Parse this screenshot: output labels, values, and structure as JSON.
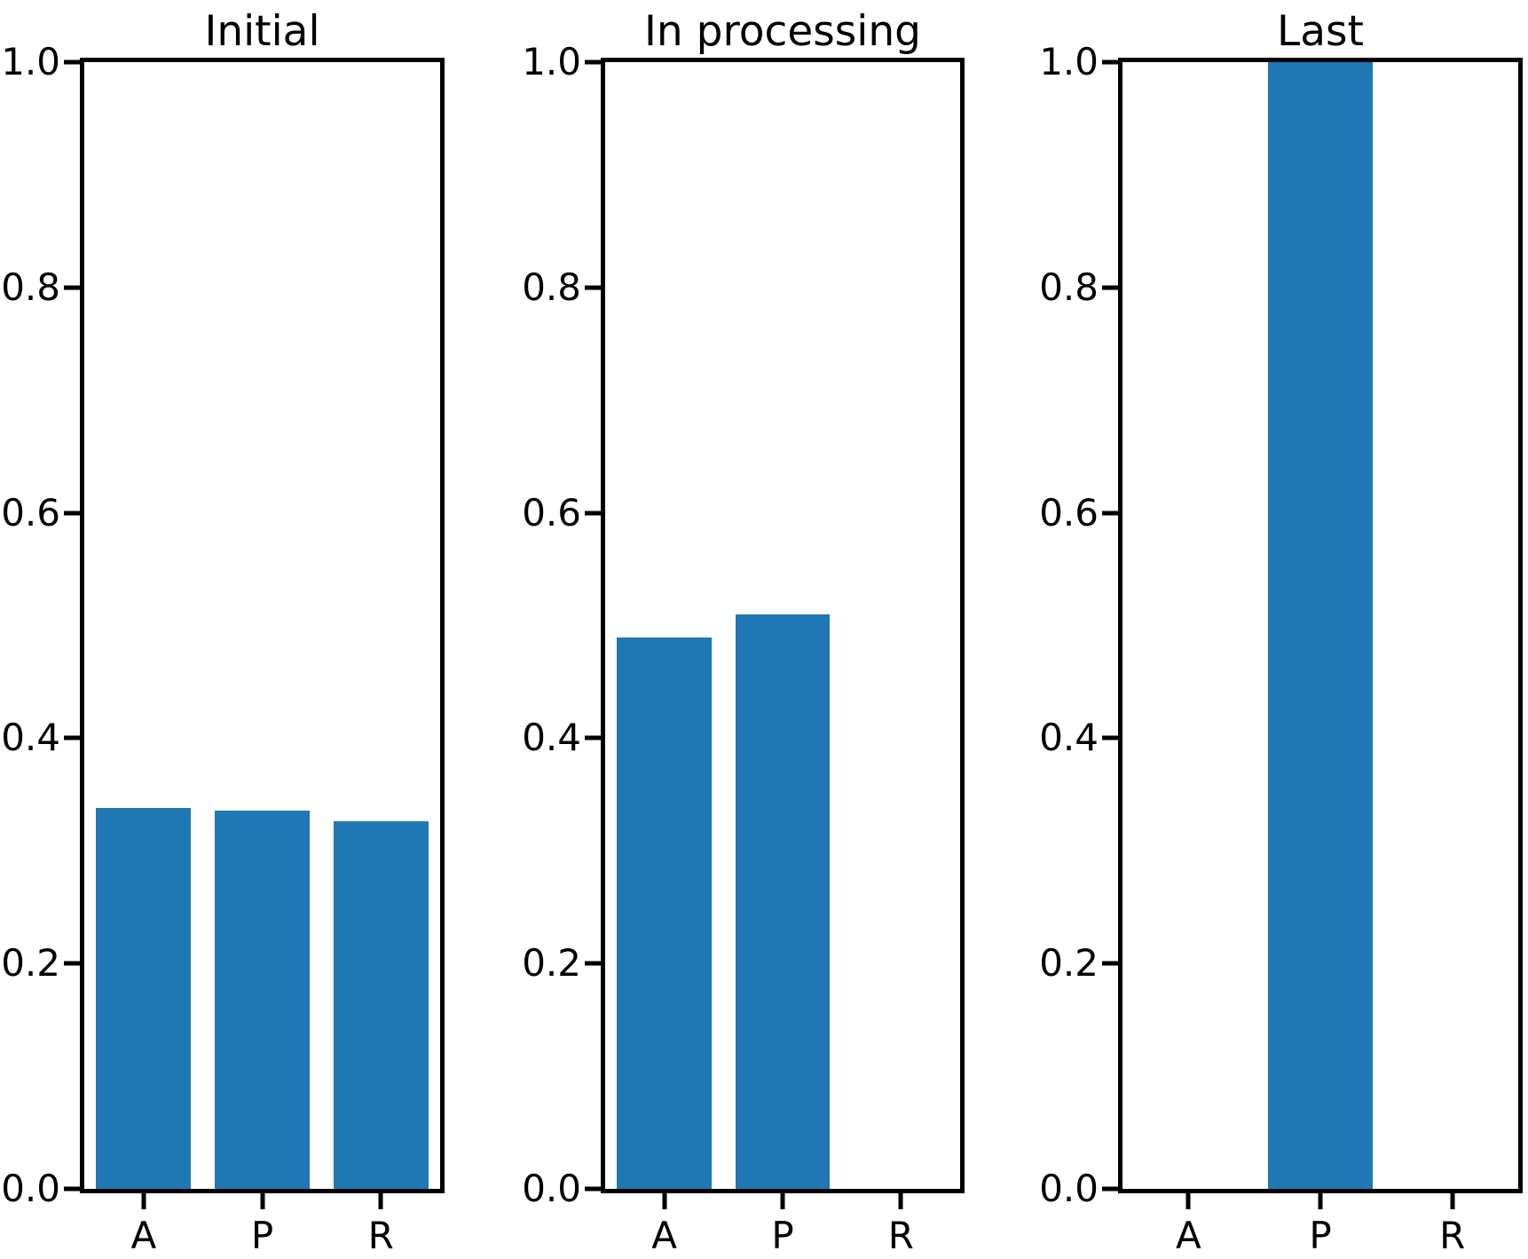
{
  "figure": {
    "background": "#ffffff",
    "axis_color": "#000000",
    "bar_color": "#1f77b4"
  },
  "chart_data": [
    {
      "type": "bar",
      "title": "Initial",
      "categories": [
        "A",
        "P",
        "R"
      ],
      "values": [
        0.338,
        0.336,
        0.326
      ],
      "xlabel": "",
      "ylabel": "",
      "ylim": [
        0.0,
        1.0
      ],
      "yticks": [
        0.0,
        0.2,
        0.4,
        0.6,
        0.8,
        1.0
      ],
      "ytick_labels": [
        "0.0",
        "0.2",
        "0.4",
        "0.6",
        "0.8",
        "1.0"
      ],
      "bar_width_fraction": 0.8,
      "grid": false,
      "legend": null
    },
    {
      "type": "bar",
      "title": "In processing",
      "categories": [
        "A",
        "P",
        "R"
      ],
      "values": [
        0.489,
        0.51,
        0.0
      ],
      "xlabel": "",
      "ylabel": "",
      "ylim": [
        0.0,
        1.0
      ],
      "yticks": [
        0.0,
        0.2,
        0.4,
        0.6,
        0.8,
        1.0
      ],
      "ytick_labels": [
        "0.0",
        "0.2",
        "0.4",
        "0.6",
        "0.8",
        "1.0"
      ],
      "bar_width_fraction": 0.8,
      "grid": false,
      "legend": null
    },
    {
      "type": "bar",
      "title": "Last",
      "categories": [
        "A",
        "P",
        "R"
      ],
      "values": [
        0.0,
        1.0,
        0.0
      ],
      "xlabel": "",
      "ylabel": "",
      "ylim": [
        0.0,
        1.0
      ],
      "yticks": [
        0.0,
        0.2,
        0.4,
        0.6,
        0.8,
        1.0
      ],
      "ytick_labels": [
        "0.0",
        "0.2",
        "0.4",
        "0.6",
        "0.8",
        "1.0"
      ],
      "bar_width_fraction": 0.8,
      "grid": false,
      "legend": null
    }
  ]
}
